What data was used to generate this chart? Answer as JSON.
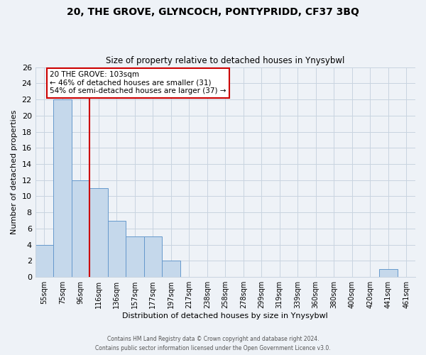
{
  "title1": "20, THE GROVE, GLYNCOCH, PONTYPRIDD, CF37 3BQ",
  "title2": "Size of property relative to detached houses in Ynysybwl",
  "xlabel": "Distribution of detached houses by size in Ynysybwl",
  "ylabel": "Number of detached properties",
  "bar_labels": [
    "55sqm",
    "75sqm",
    "96sqm",
    "116sqm",
    "136sqm",
    "157sqm",
    "177sqm",
    "197sqm",
    "217sqm",
    "238sqm",
    "258sqm",
    "278sqm",
    "299sqm",
    "319sqm",
    "339sqm",
    "360sqm",
    "380sqm",
    "400sqm",
    "420sqm",
    "441sqm",
    "461sqm"
  ],
  "bar_values": [
    4,
    22,
    12,
    11,
    7,
    5,
    5,
    2,
    0,
    0,
    0,
    0,
    0,
    0,
    0,
    0,
    0,
    0,
    0,
    1,
    0
  ],
  "bar_color": "#c5d8eb",
  "bar_edge_color": "#6699cc",
  "grid_color": "#c8d4e0",
  "vline_x_idx": 2,
  "vline_color": "#cc0000",
  "annotation_text": "20 THE GROVE: 103sqm\n← 46% of detached houses are smaller (31)\n54% of semi-detached houses are larger (37) →",
  "annotation_box_edge": "#cc0000",
  "annotation_box_face": "white",
  "ylim": [
    0,
    26
  ],
  "yticks": [
    0,
    2,
    4,
    6,
    8,
    10,
    12,
    14,
    16,
    18,
    20,
    22,
    24,
    26
  ],
  "footer1": "Contains HM Land Registry data © Crown copyright and database right 2024.",
  "footer2": "Contains public sector information licensed under the Open Government Licence v3.0.",
  "background_color": "#eef2f7"
}
